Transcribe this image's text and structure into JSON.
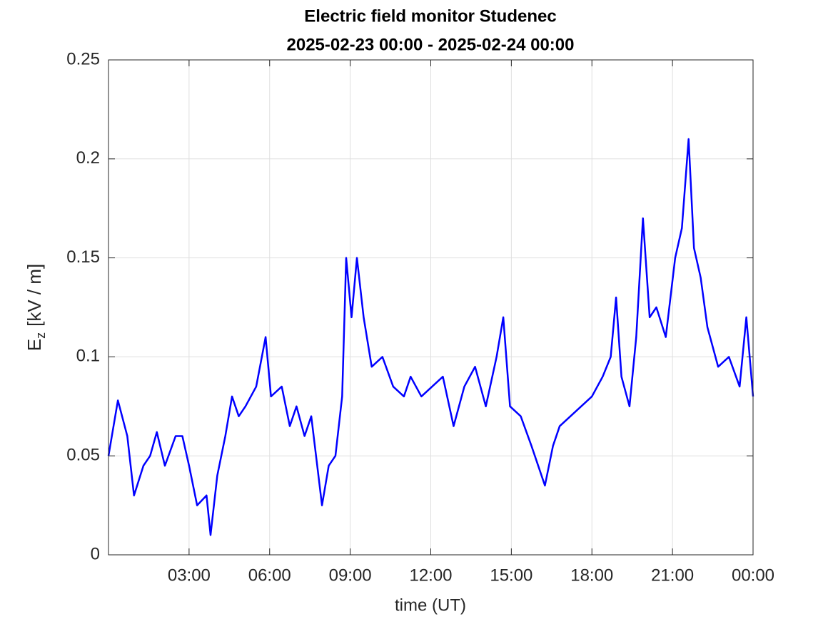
{
  "chart_data": {
    "type": "line",
    "title": [
      "Electric field monitor Studenec",
      "2025-02-23 00:00 - 2025-02-24 00:00"
    ],
    "xlabel": "time (UT)",
    "ylabel": {
      "main": "E",
      "sub": "z",
      "rest": "[kV / m]"
    },
    "x": [
      0,
      0.35,
      0.7,
      0.95,
      1.3,
      1.55,
      1.8,
      2.1,
      2.5,
      2.75,
      3.0,
      3.3,
      3.65,
      3.8,
      4.05,
      4.35,
      4.6,
      4.85,
      5.1,
      5.5,
      5.85,
      6.05,
      6.45,
      6.75,
      7.0,
      7.3,
      7.55,
      7.95,
      8.2,
      8.45,
      8.7,
      8.85,
      9.05,
      9.25,
      9.5,
      9.8,
      10.2,
      10.6,
      11.0,
      11.25,
      11.65,
      12.05,
      12.45,
      12.85,
      13.25,
      13.65,
      14.05,
      14.45,
      14.7,
      14.95,
      15.35,
      15.75,
      16.0,
      16.25,
      16.55,
      16.8,
      17.2,
      17.6,
      18.0,
      18.4,
      18.7,
      18.9,
      19.1,
      19.4,
      19.65,
      19.9,
      20.15,
      20.4,
      20.75,
      21.1,
      21.35,
      21.6,
      21.8,
      22.05,
      22.3,
      22.7,
      23.1,
      23.5,
      23.75,
      24
    ],
    "values": [
      0.05,
      0.078,
      0.06,
      0.03,
      0.045,
      0.05,
      0.062,
      0.045,
      0.06,
      0.06,
      0.045,
      0.025,
      0.03,
      0.01,
      0.04,
      0.06,
      0.08,
      0.07,
      0.075,
      0.085,
      0.11,
      0.08,
      0.085,
      0.065,
      0.075,
      0.06,
      0.07,
      0.025,
      0.045,
      0.05,
      0.08,
      0.15,
      0.12,
      0.15,
      0.12,
      0.095,
      0.1,
      0.085,
      0.08,
      0.09,
      0.08,
      0.085,
      0.09,
      0.065,
      0.085,
      0.095,
      0.075,
      0.1,
      0.12,
      0.075,
      0.07,
      0.055,
      0.045,
      0.035,
      0.055,
      0.065,
      0.07,
      0.075,
      0.08,
      0.09,
      0.1,
      0.13,
      0.09,
      0.075,
      0.11,
      0.17,
      0.12,
      0.125,
      0.11,
      0.15,
      0.165,
      0.21,
      0.155,
      0.14,
      0.115,
      0.095,
      0.1,
      0.085,
      0.12,
      0.08
    ],
    "color": "#0000ff",
    "xlim": [
      0,
      24
    ],
    "xticks": [
      {
        "value": 3,
        "label": "03:00"
      },
      {
        "value": 6,
        "label": "06:00"
      },
      {
        "value": 9,
        "label": "09:00"
      },
      {
        "value": 12,
        "label": "12:00"
      },
      {
        "value": 15,
        "label": "15:00"
      },
      {
        "value": 18,
        "label": "18:00"
      },
      {
        "value": 21,
        "label": "21:00"
      },
      {
        "value": 24,
        "label": "00:00"
      }
    ],
    "ylim": [
      0,
      0.25
    ],
    "yticks": [
      0,
      0.05,
      0.1,
      0.15,
      0.2,
      0.25
    ],
    "grid": true
  }
}
